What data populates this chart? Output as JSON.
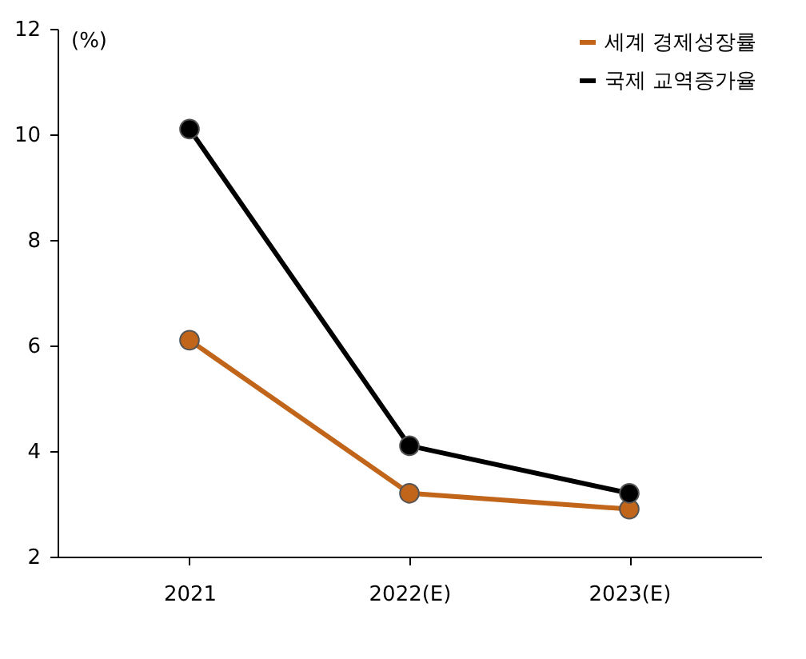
{
  "chart_data": {
    "type": "line",
    "ylabel": "(%)",
    "categories": [
      "2021",
      "2022(E)",
      "2023(E)"
    ],
    "series": [
      {
        "name": "세계 경제성장률",
        "color": "#c0651a",
        "values": [
          6.1,
          3.2,
          2.9
        ]
      },
      {
        "name": "국제 교역증가율",
        "color": "#000000",
        "values": [
          10.1,
          4.1,
          3.2
        ]
      }
    ],
    "ylim": [
      2,
      12
    ],
    "yticks": [
      2,
      4,
      6,
      8,
      10,
      12
    ],
    "grid": false,
    "legend": "top right",
    "marker": "circle",
    "line_style": "solid"
  }
}
